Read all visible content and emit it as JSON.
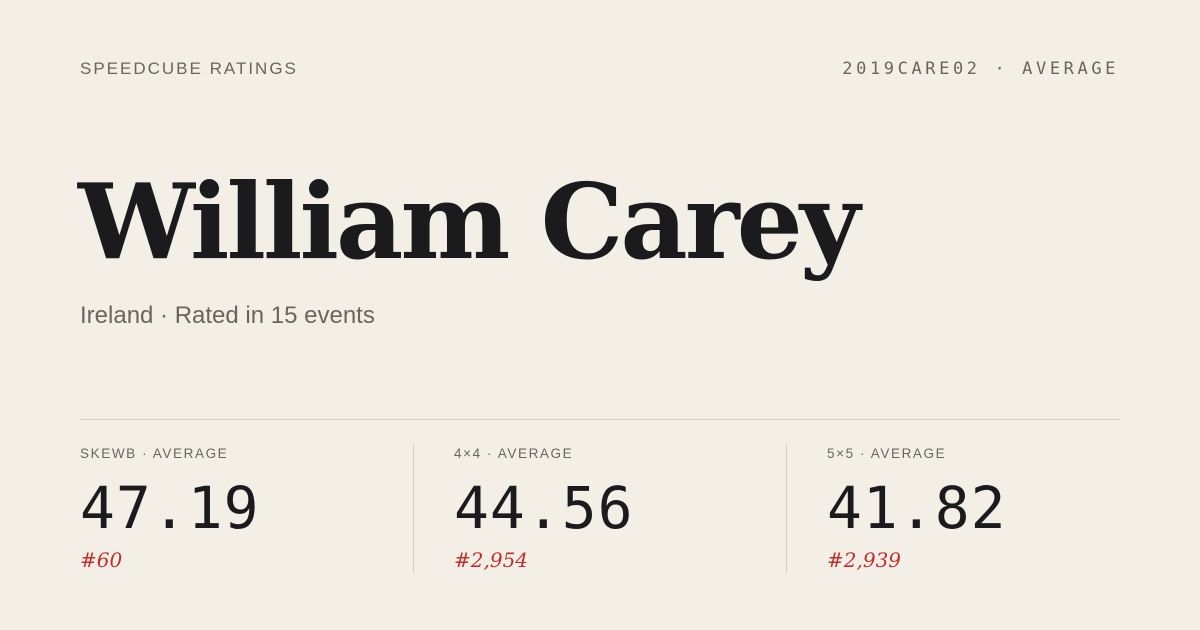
{
  "header": {
    "brand": "SPEEDCUBE RATINGS",
    "id_label": "2019CARE02 · AVERAGE"
  },
  "profile": {
    "name": "William Carey",
    "subtitle": "Ireland · Rated in 15 events"
  },
  "stats": [
    {
      "label": "SKEWB · AVERAGE",
      "value": "47.19",
      "rank": "#60"
    },
    {
      "label": "4×4 · AVERAGE",
      "value": "44.56",
      "rank": "#2,954"
    },
    {
      "label": "5×5 · AVERAGE",
      "value": "41.82",
      "rank": "#2,939"
    }
  ],
  "colors": {
    "background": "#f3efe7",
    "accent": "#c0312b",
    "text": "#1b1a1c",
    "muted": "#6b6658"
  }
}
